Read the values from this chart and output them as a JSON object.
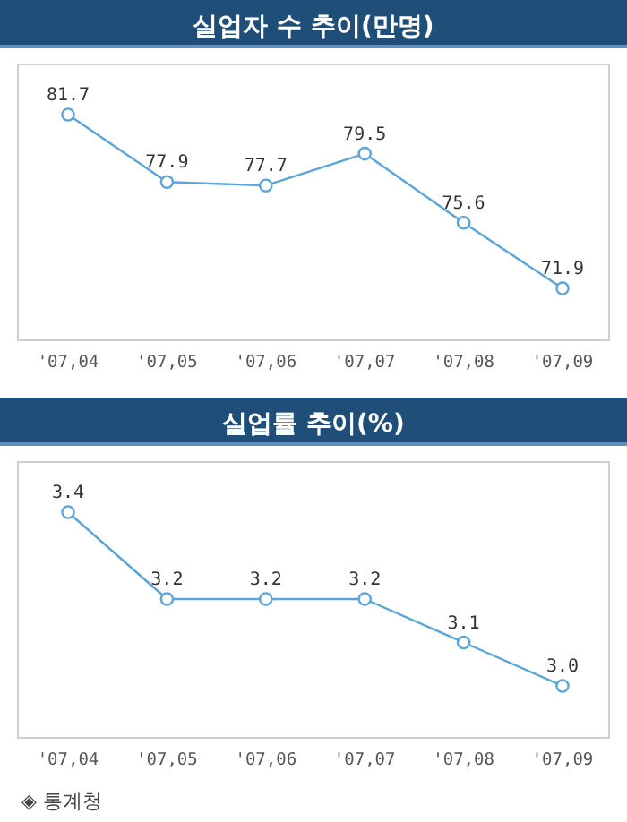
{
  "chart_data": [
    {
      "type": "line",
      "title": "실업자 수 추이(만명)",
      "categories": [
        "'07,04",
        "'07,05",
        "'07,06",
        "'07,07",
        "'07,08",
        "'07,09"
      ],
      "values": [
        81.7,
        77.9,
        77.7,
        79.5,
        75.6,
        71.9
      ],
      "value_labels": [
        "81.7",
        "77.9",
        "77.7",
        "79.5",
        "75.6",
        "71.9"
      ],
      "color": "#5aa5dc",
      "marker": "circle"
    },
    {
      "type": "line",
      "title": "실업률 추이(%)",
      "categories": [
        "'07,04",
        "'07,05",
        "'07,06",
        "'07,07",
        "'07,08",
        "'07,09"
      ],
      "values": [
        3.4,
        3.2,
        3.2,
        3.2,
        3.1,
        3.0
      ],
      "value_labels": [
        "3.4",
        "3.2",
        "3.2",
        "3.2",
        "3.1",
        "3.0"
      ],
      "color": "#5aa5dc",
      "marker": "circle",
      "annotations": [
        "◈ 통계청"
      ]
    }
  ]
}
